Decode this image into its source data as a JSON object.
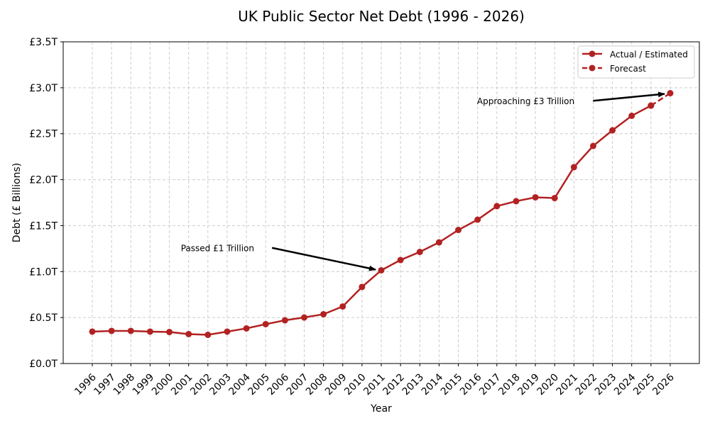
{
  "chart_data": {
    "type": "line",
    "title": "UK Public Sector Net Debt (1996 - 2026)",
    "xlabel": "Year",
    "ylabel": "Debt (£ Billions)",
    "ylim": [
      0,
      3500
    ],
    "grid": true,
    "legend_placement": "top-right",
    "yticks": [
      0,
      500,
      1000,
      1500,
      2000,
      2500,
      3000,
      3500
    ],
    "ytick_labels": [
      "£0.0T",
      "£0.5T",
      "£1.0T",
      "£1.5T",
      "£2.0T",
      "£2.5T",
      "£3.0T",
      "£3.5T"
    ],
    "x": [
      1996,
      1997,
      1998,
      1999,
      2000,
      2001,
      2002,
      2003,
      2004,
      2005,
      2006,
      2007,
      2008,
      2009,
      2010,
      2011,
      2012,
      2013,
      2014,
      2015,
      2016,
      2017,
      2018,
      2019,
      2020,
      2021,
      2022,
      2023,
      2024,
      2025,
      2026
    ],
    "series": [
      {
        "name": "Actual / Estimated",
        "color": "#b22222",
        "style": "solid",
        "x": [
          1996,
          1997,
          1998,
          1999,
          2000,
          2001,
          2002,
          2003,
          2004,
          2005,
          2006,
          2007,
          2008,
          2009,
          2010,
          2011,
          2012,
          2013,
          2014,
          2015,
          2016,
          2017,
          2018,
          2019,
          2020,
          2021,
          2022,
          2023,
          2024,
          2025
        ],
        "values": [
          347,
          355,
          355,
          347,
          343,
          320,
          312,
          347,
          382,
          428,
          470,
          501,
          536,
          621,
          833,
          1014,
          1126,
          1214,
          1318,
          1453,
          1565,
          1712,
          1766,
          1808,
          1800,
          2136,
          2367,
          2537,
          2695,
          2806
        ]
      },
      {
        "name": "Forecast",
        "color": "#b22222",
        "style": "dashed",
        "x": [
          2025,
          2026
        ],
        "values": [
          2806,
          2941
        ]
      }
    ],
    "annotations": [
      {
        "text": "Passed £1 Trillion",
        "point": [
          2011,
          1014
        ],
        "text_at": [
          2002.5,
          1220
        ]
      },
      {
        "text": "Approaching £3 Trillion",
        "point": [
          2026,
          2941
        ],
        "text_at": [
          2018.5,
          2820
        ]
      }
    ]
  }
}
